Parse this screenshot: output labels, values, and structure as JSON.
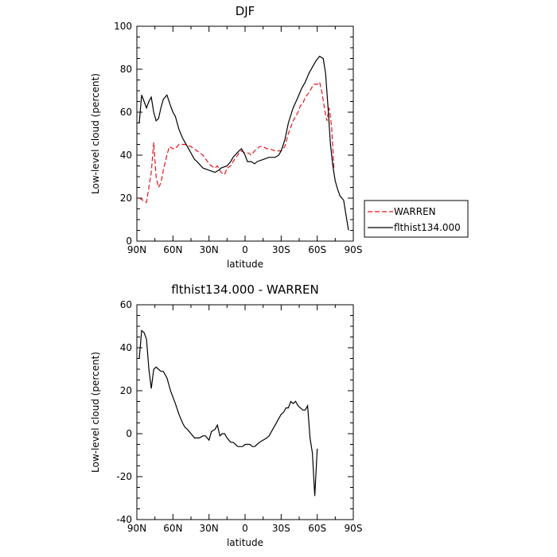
{
  "chart_data": [
    {
      "type": "line",
      "title": "DJF",
      "xlabel": "latitude",
      "ylabel": "Low-level cloud (percent)",
      "xlim": [
        90,
        -90
      ],
      "ylim": [
        0,
        100
      ],
      "xticks": [
        90,
        60,
        30,
        0,
        -30,
        -60,
        -90
      ],
      "xtick_labels": [
        "90N",
        "60N",
        "30N",
        "0",
        "30S",
        "60S",
        "90S"
      ],
      "yticks": [
        0,
        20,
        40,
        60,
        80,
        100
      ],
      "ytick_labels": [
        "0",
        "20",
        "40",
        "60",
        "80",
        "100"
      ],
      "legend_position": "right",
      "series": [
        {
          "name": "WARREN",
          "color": "#e8141c",
          "dash": "dashed",
          "points": [
            [
              88,
              20
            ],
            [
              85,
              19
            ],
            [
              82,
              18
            ],
            [
              80,
              25
            ],
            [
              78,
              32
            ],
            [
              76,
              46
            ],
            [
              74,
              30
            ],
            [
              72,
              25
            ],
            [
              70,
              27
            ],
            [
              68,
              33
            ],
            [
              65,
              40
            ],
            [
              63,
              44
            ],
            [
              60,
              43
            ],
            [
              58,
              43
            ],
            [
              55,
              45
            ],
            [
              50,
              45
            ],
            [
              45,
              44
            ],
            [
              40,
              42
            ],
            [
              35,
              40
            ],
            [
              30,
              36
            ],
            [
              28,
              35
            ],
            [
              25,
              34
            ],
            [
              23,
              35
            ],
            [
              20,
              32
            ],
            [
              17,
              31
            ],
            [
              15,
              34
            ],
            [
              12,
              35
            ],
            [
              10,
              37
            ],
            [
              5,
              41
            ],
            [
              3,
              42
            ],
            [
              0,
              41
            ],
            [
              -3,
              41
            ],
            [
              -5,
              40
            ],
            [
              -8,
              42
            ],
            [
              -12,
              44
            ],
            [
              -15,
              44
            ],
            [
              -18,
              43
            ],
            [
              -20,
              43
            ],
            [
              -25,
              42
            ],
            [
              -30,
              42
            ],
            [
              -33,
              44
            ],
            [
              -36,
              50
            ],
            [
              -40,
              56
            ],
            [
              -44,
              60
            ],
            [
              -46,
              63
            ],
            [
              -48,
              64
            ],
            [
              -50,
              67
            ],
            [
              -53,
              69
            ],
            [
              -55,
              71
            ],
            [
              -57,
              73
            ],
            [
              -60,
              73
            ],
            [
              -62,
              74
            ],
            [
              -64,
              69
            ],
            [
              -66,
              62
            ],
            [
              -68,
              56
            ],
            [
              -70,
              62
            ],
            [
              -72,
              53
            ],
            [
              -74,
              33
            ]
          ]
        },
        {
          "name": "flthist134.000",
          "color": "#000000",
          "dash": "solid",
          "points": [
            [
              88,
              55
            ],
            [
              86,
              68
            ],
            [
              84,
              65
            ],
            [
              82,
              62
            ],
            [
              80,
              65
            ],
            [
              78,
              67
            ],
            [
              76,
              60
            ],
            [
              74,
              56
            ],
            [
              72,
              57
            ],
            [
              70,
              62
            ],
            [
              68,
              66
            ],
            [
              65,
              68
            ],
            [
              62,
              63
            ],
            [
              60,
              60
            ],
            [
              58,
              58
            ],
            [
              55,
              52
            ],
            [
              52,
              48
            ],
            [
              50,
              46
            ],
            [
              48,
              44
            ],
            [
              45,
              41
            ],
            [
              42,
              38
            ],
            [
              40,
              37
            ],
            [
              35,
              34
            ],
            [
              30,
              33
            ],
            [
              25,
              32
            ],
            [
              22,
              33
            ],
            [
              20,
              34
            ],
            [
              15,
              35
            ],
            [
              12,
              37
            ],
            [
              10,
              39
            ],
            [
              5,
              42
            ],
            [
              3,
              43
            ],
            [
              0,
              40
            ],
            [
              -2,
              37
            ],
            [
              -5,
              37
            ],
            [
              -8,
              36
            ],
            [
              -10,
              37
            ],
            [
              -15,
              38
            ],
            [
              -20,
              39
            ],
            [
              -25,
              39
            ],
            [
              -28,
              40
            ],
            [
              -30,
              42
            ],
            [
              -33,
              47
            ],
            [
              -36,
              55
            ],
            [
              -40,
              62
            ],
            [
              -44,
              67
            ],
            [
              -47,
              71
            ],
            [
              -50,
              74
            ],
            [
              -53,
              78
            ],
            [
              -56,
              81
            ],
            [
              -59,
              84
            ],
            [
              -62,
              86
            ],
            [
              -65,
              85
            ],
            [
              -67,
              78
            ],
            [
              -69,
              62
            ],
            [
              -71,
              45
            ],
            [
              -73,
              35
            ],
            [
              -75,
              28
            ],
            [
              -77,
              24
            ],
            [
              -79,
              21
            ],
            [
              -82,
              19
            ],
            [
              -84,
              12
            ],
            [
              -86,
              5
            ]
          ]
        }
      ]
    },
    {
      "type": "line",
      "title": "flthist134.000 - WARREN",
      "xlabel": "latitude",
      "ylabel": "Low-level cloud (percent)",
      "xlim": [
        90,
        -90
      ],
      "ylim": [
        -40,
        60
      ],
      "xticks": [
        90,
        60,
        30,
        0,
        -30,
        -60,
        -90
      ],
      "xtick_labels": [
        "90N",
        "60N",
        "30N",
        "0",
        "30S",
        "60S",
        "90S"
      ],
      "yticks": [
        -40,
        -20,
        0,
        20,
        40,
        60
      ],
      "ytick_labels": [
        "-40",
        "-20",
        "0",
        "20",
        "40",
        "60"
      ],
      "series": [
        {
          "color": "#000000",
          "dash": "solid",
          "points": [
            [
              88,
              35
            ],
            [
              86,
              48
            ],
            [
              84,
              47
            ],
            [
              82,
              44
            ],
            [
              80,
              30
            ],
            [
              78,
              21
            ],
            [
              76,
              30
            ],
            [
              74,
              31
            ],
            [
              72,
              30
            ],
            [
              70,
              29
            ],
            [
              68,
              29
            ],
            [
              65,
              26
            ],
            [
              62,
              20
            ],
            [
              60,
              17
            ],
            [
              58,
              14
            ],
            [
              55,
              9
            ],
            [
              52,
              5
            ],
            [
              50,
              3
            ],
            [
              48,
              2
            ],
            [
              45,
              0
            ],
            [
              42,
              -2
            ],
            [
              40,
              -2
            ],
            [
              38,
              -2
            ],
            [
              35,
              -1
            ],
            [
              33,
              -1
            ],
            [
              30,
              -3
            ],
            [
              28,
              1
            ],
            [
              25,
              2
            ],
            [
              23,
              4
            ],
            [
              21,
              -1
            ],
            [
              19,
              0
            ],
            [
              17,
              0
            ],
            [
              15,
              -2
            ],
            [
              12,
              -4
            ],
            [
              10,
              -4
            ],
            [
              8,
              -5
            ],
            [
              6,
              -6
            ],
            [
              4,
              -6
            ],
            [
              2,
              -6
            ],
            [
              0,
              -5
            ],
            [
              -2,
              -5
            ],
            [
              -4,
              -5
            ],
            [
              -6,
              -6
            ],
            [
              -8,
              -6
            ],
            [
              -10,
              -5
            ],
            [
              -12,
              -4
            ],
            [
              -15,
              -3
            ],
            [
              -18,
              -2
            ],
            [
              -20,
              -1
            ],
            [
              -22,
              1
            ],
            [
              -25,
              4
            ],
            [
              -28,
              7
            ],
            [
              -30,
              9
            ],
            [
              -32,
              10
            ],
            [
              -34,
              12
            ],
            [
              -36,
              12
            ],
            [
              -38,
              15
            ],
            [
              -40,
              14
            ],
            [
              -42,
              15
            ],
            [
              -44,
              13
            ],
            [
              -46,
              12
            ],
            [
              -48,
              11
            ],
            [
              -50,
              11
            ],
            [
              -52,
              13
            ],
            [
              -54,
              -2
            ],
            [
              -56,
              -9
            ],
            [
              -58,
              -29
            ],
            [
              -60,
              -7
            ]
          ]
        }
      ]
    }
  ]
}
